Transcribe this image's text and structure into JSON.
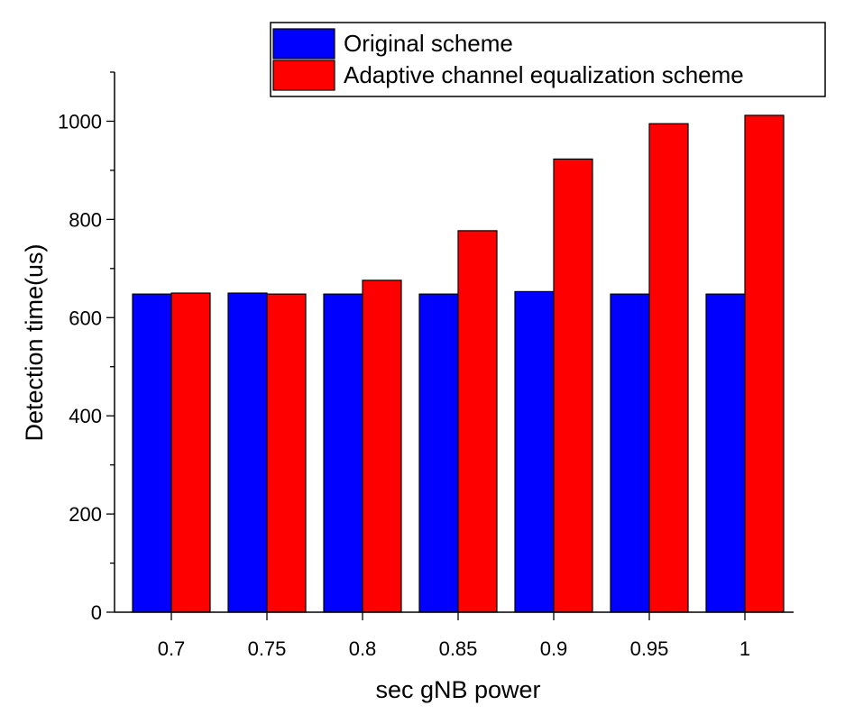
{
  "chart_data": {
    "type": "bar",
    "title": "",
    "xlabel": "sec gNB power",
    "ylabel": "Detection time(us)",
    "categories": [
      "0.7",
      "0.75",
      "0.8",
      "0.85",
      "0.9",
      "0.95",
      "1"
    ],
    "series": [
      {
        "name": "Original scheme",
        "color": "#0000ff",
        "values": [
          648,
          650,
          648,
          648,
          653,
          648,
          648
        ]
      },
      {
        "name": "Adaptive channel equalization scheme",
        "color": "#ff0000",
        "values": [
          650,
          648,
          676,
          777,
          923,
          995,
          1012
        ]
      }
    ],
    "ylim": [
      0,
      1100
    ],
    "yticks": [
      0,
      200,
      400,
      600,
      800,
      1000
    ],
    "ytick_labels": [
      "0",
      "200",
      "400",
      "600",
      "800",
      "1000"
    ],
    "legend_position": "top-right",
    "grid": false
  }
}
